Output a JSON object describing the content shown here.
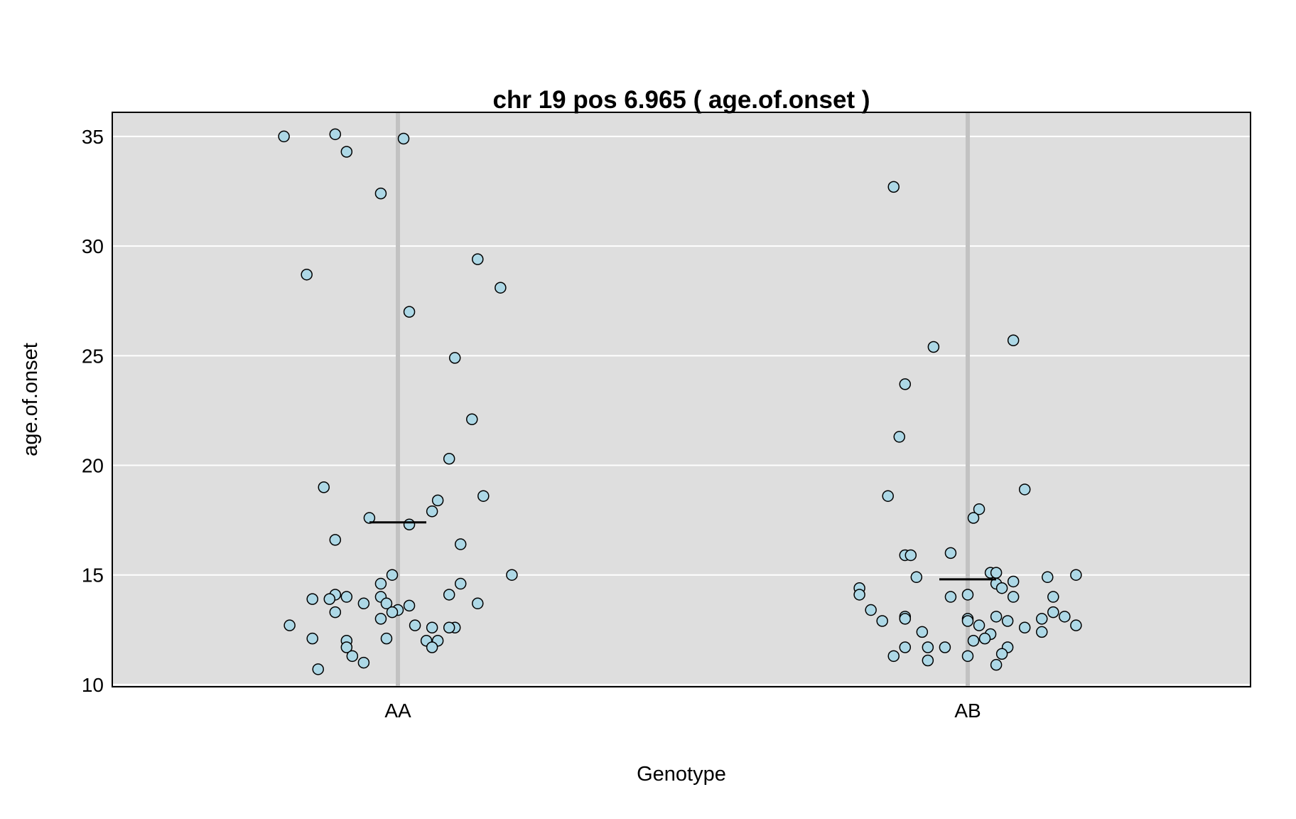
{
  "chart_data": {
    "type": "scatter",
    "title": "chr 19 pos 6.965 ( age.of.onset )",
    "xlabel": "Genotype",
    "ylabel": "age.of.onset",
    "categories": [
      "AA",
      "AB"
    ],
    "ylim": [
      9.9,
      36.1
    ],
    "yticks": [
      10,
      15,
      20,
      25,
      30,
      35
    ],
    "grid": true,
    "background_color": "#dedede",
    "grid_color": "#ffffff",
    "category_line_color": "#c2c2c2",
    "point_fill": "#add8e6",
    "point_stroke": "#000000",
    "mean_line_color": "#000000",
    "series": [
      {
        "category": "AA",
        "mean": 17.4,
        "points": [
          {
            "x": -0.2,
            "y": 35.0
          },
          {
            "x": -0.11,
            "y": 35.1
          },
          {
            "x": 0.01,
            "y": 34.9
          },
          {
            "x": -0.09,
            "y": 34.3
          },
          {
            "x": -0.03,
            "y": 32.4
          },
          {
            "x": -0.16,
            "y": 28.7
          },
          {
            "x": 0.14,
            "y": 29.4
          },
          {
            "x": 0.18,
            "y": 28.1
          },
          {
            "x": 0.02,
            "y": 27.0
          },
          {
            "x": 0.1,
            "y": 24.9
          },
          {
            "x": 0.13,
            "y": 22.1
          },
          {
            "x": 0.09,
            "y": 20.3
          },
          {
            "x": -0.13,
            "y": 19.0
          },
          {
            "x": 0.15,
            "y": 18.6
          },
          {
            "x": 0.07,
            "y": 18.4
          },
          {
            "x": 0.06,
            "y": 17.9
          },
          {
            "x": -0.05,
            "y": 17.6
          },
          {
            "x": 0.02,
            "y": 17.3
          },
          {
            "x": -0.11,
            "y": 16.6
          },
          {
            "x": 0.11,
            "y": 16.4
          },
          {
            "x": 0.2,
            "y": 15.0
          },
          {
            "x": -0.01,
            "y": 15.0
          },
          {
            "x": -0.03,
            "y": 14.6
          },
          {
            "x": 0.11,
            "y": 14.6
          },
          {
            "x": 0.09,
            "y": 14.1
          },
          {
            "x": -0.11,
            "y": 14.1
          },
          {
            "x": -0.09,
            "y": 14.0
          },
          {
            "x": -0.03,
            "y": 14.0
          },
          {
            "x": -0.15,
            "y": 13.9
          },
          {
            "x": -0.12,
            "y": 13.9
          },
          {
            "x": -0.06,
            "y": 13.7
          },
          {
            "x": 0.14,
            "y": 13.7
          },
          {
            "x": -0.02,
            "y": 13.7
          },
          {
            "x": 0.02,
            "y": 13.6
          },
          {
            "x": 0.0,
            "y": 13.4
          },
          {
            "x": -0.01,
            "y": 13.3
          },
          {
            "x": -0.11,
            "y": 13.3
          },
          {
            "x": -0.03,
            "y": 13.0
          },
          {
            "x": -0.19,
            "y": 12.7
          },
          {
            "x": 0.03,
            "y": 12.7
          },
          {
            "x": 0.06,
            "y": 12.6
          },
          {
            "x": 0.1,
            "y": 12.6
          },
          {
            "x": 0.09,
            "y": 12.6
          },
          {
            "x": -0.15,
            "y": 12.1
          },
          {
            "x": -0.02,
            "y": 12.1
          },
          {
            "x": -0.09,
            "y": 12.0
          },
          {
            "x": 0.05,
            "y": 12.0
          },
          {
            "x": 0.07,
            "y": 12.0
          },
          {
            "x": -0.09,
            "y": 11.7
          },
          {
            "x": 0.06,
            "y": 11.7
          },
          {
            "x": -0.08,
            "y": 11.3
          },
          {
            "x": -0.06,
            "y": 11.0
          },
          {
            "x": -0.14,
            "y": 10.7
          }
        ]
      },
      {
        "category": "AB",
        "mean": 14.8,
        "points": [
          {
            "x": -0.13,
            "y": 32.7
          },
          {
            "x": 0.08,
            "y": 25.7
          },
          {
            "x": -0.06,
            "y": 25.4
          },
          {
            "x": -0.11,
            "y": 23.7
          },
          {
            "x": -0.12,
            "y": 21.3
          },
          {
            "x": 0.1,
            "y": 18.9
          },
          {
            "x": -0.14,
            "y": 18.6
          },
          {
            "x": 0.02,
            "y": 18.0
          },
          {
            "x": 0.01,
            "y": 17.6
          },
          {
            "x": -0.03,
            "y": 16.0
          },
          {
            "x": -0.11,
            "y": 15.9
          },
          {
            "x": -0.1,
            "y": 15.9
          },
          {
            "x": 0.04,
            "y": 15.1
          },
          {
            "x": 0.05,
            "y": 15.1
          },
          {
            "x": 0.19,
            "y": 15.0
          },
          {
            "x": 0.14,
            "y": 14.9
          },
          {
            "x": -0.09,
            "y": 14.9
          },
          {
            "x": 0.08,
            "y": 14.7
          },
          {
            "x": 0.05,
            "y": 14.6
          },
          {
            "x": 0.06,
            "y": 14.4
          },
          {
            "x": -0.19,
            "y": 14.4
          },
          {
            "x": -0.19,
            "y": 14.1
          },
          {
            "x": 0.0,
            "y": 14.1
          },
          {
            "x": -0.03,
            "y": 14.0
          },
          {
            "x": 0.08,
            "y": 14.0
          },
          {
            "x": 0.15,
            "y": 14.0
          },
          {
            "x": -0.17,
            "y": 13.4
          },
          {
            "x": 0.15,
            "y": 13.3
          },
          {
            "x": 0.17,
            "y": 13.1
          },
          {
            "x": 0.05,
            "y": 13.1
          },
          {
            "x": -0.11,
            "y": 13.1
          },
          {
            "x": 0.0,
            "y": 13.0
          },
          {
            "x": -0.11,
            "y": 13.0
          },
          {
            "x": 0.13,
            "y": 13.0
          },
          {
            "x": -0.15,
            "y": 12.9
          },
          {
            "x": 0.07,
            "y": 12.9
          },
          {
            "x": 0.0,
            "y": 12.9
          },
          {
            "x": 0.02,
            "y": 12.7
          },
          {
            "x": 0.19,
            "y": 12.7
          },
          {
            "x": 0.1,
            "y": 12.6
          },
          {
            "x": -0.08,
            "y": 12.4
          },
          {
            "x": 0.13,
            "y": 12.4
          },
          {
            "x": 0.04,
            "y": 12.3
          },
          {
            "x": 0.03,
            "y": 12.1
          },
          {
            "x": 0.01,
            "y": 12.0
          },
          {
            "x": -0.11,
            "y": 11.7
          },
          {
            "x": -0.04,
            "y": 11.7
          },
          {
            "x": 0.07,
            "y": 11.7
          },
          {
            "x": -0.07,
            "y": 11.7
          },
          {
            "x": 0.06,
            "y": 11.4
          },
          {
            "x": -0.13,
            "y": 11.3
          },
          {
            "x": 0.0,
            "y": 11.3
          },
          {
            "x": -0.07,
            "y": 11.1
          },
          {
            "x": 0.05,
            "y": 10.9
          }
        ]
      }
    ]
  }
}
